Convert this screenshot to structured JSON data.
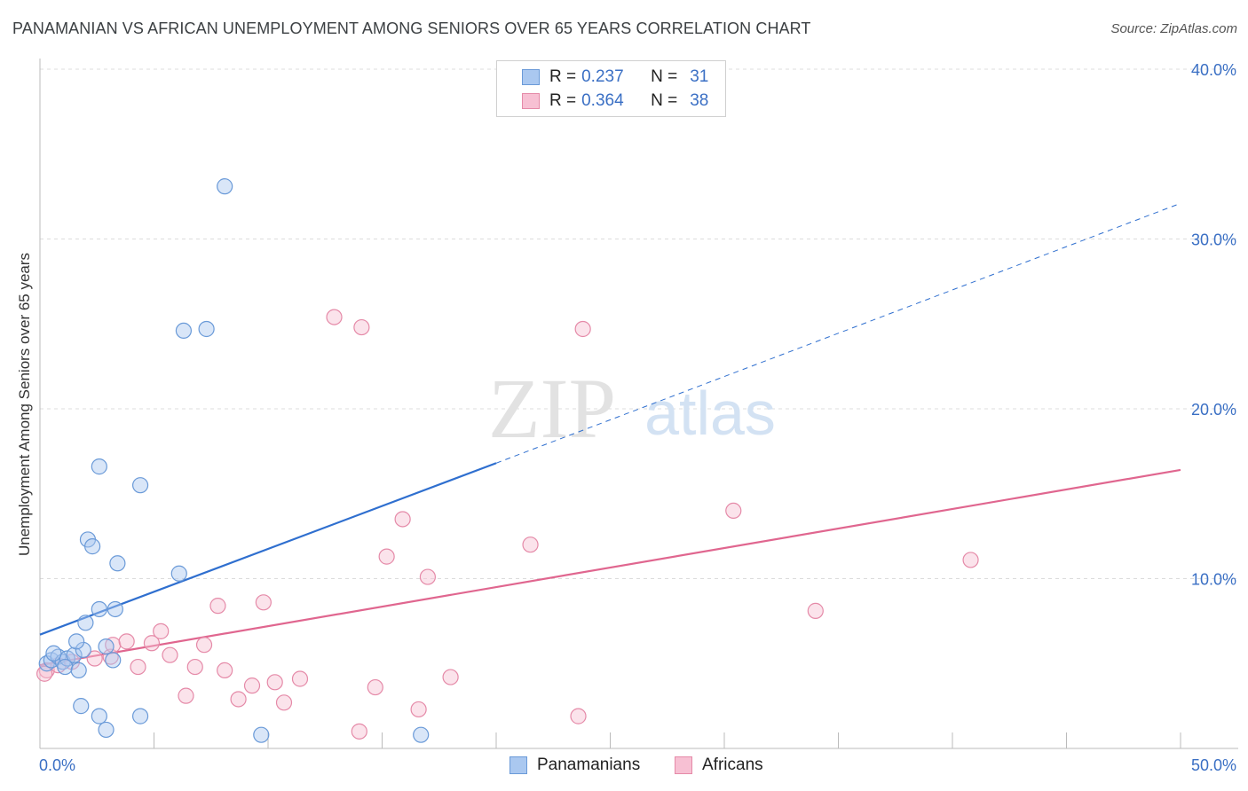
{
  "title": "PANAMANIAN VS AFRICAN UNEMPLOYMENT AMONG SENIORS OVER 65 YEARS CORRELATION CHART",
  "source": "Source: ZipAtlas.com",
  "watermark": {
    "zip": "ZIP",
    "atlas": "atlas"
  },
  "legend": {
    "rows": [
      {
        "r_label": "R =",
        "r_value": "0.237",
        "n_label": "N =",
        "n_value": "31",
        "color": "#aac8f0",
        "border": "#6a9ad8"
      },
      {
        "r_label": "R =",
        "r_value": "0.364",
        "n_label": "N =",
        "n_value": "38",
        "color": "#f7c0d3",
        "border": "#e58aa8"
      }
    ]
  },
  "bottom_legend": [
    {
      "label": "Panamanians",
      "color": "#aac8f0",
      "border": "#6a9ad8"
    },
    {
      "label": "Africans",
      "color": "#f7c0d3",
      "border": "#e58aa8"
    }
  ],
  "chart_data": {
    "type": "scatter",
    "title": "PANAMANIAN VS AFRICAN UNEMPLOYMENT AMONG SENIORS OVER 65 YEARS CORRELATION CHART",
    "xlabel": "",
    "ylabel": "Unemployment Among Seniors over 65 years",
    "xlim": [
      0,
      50
    ],
    "ylim": [
      0,
      40
    ],
    "x_tick_labels": [
      "0.0%",
      "50.0%"
    ],
    "y_ticks": [
      10,
      20,
      30,
      40
    ],
    "y_tick_labels": [
      "10.0%",
      "20.0%",
      "30.0%",
      "40.0%"
    ],
    "grid": true,
    "series": [
      {
        "name": "Panamanians",
        "color": "#6a9ad8",
        "fill": "rgba(170,200,240,0.45)",
        "line_color": "#2f6fcf",
        "trend": {
          "x0": 0,
          "y0": 6.7,
          "x_solid_end": 20,
          "y_solid_end": 16.8,
          "x1": 50,
          "y1": 32.1
        },
        "points": [
          [
            0.3,
            5.0
          ],
          [
            0.5,
            5.2
          ],
          [
            0.8,
            5.4
          ],
          [
            1.0,
            5.1
          ],
          [
            1.2,
            5.3
          ],
          [
            1.5,
            5.5
          ],
          [
            1.1,
            4.8
          ],
          [
            1.7,
            4.6
          ],
          [
            1.9,
            5.8
          ],
          [
            1.6,
            6.3
          ],
          [
            2.0,
            7.4
          ],
          [
            2.1,
            12.3
          ],
          [
            2.3,
            11.9
          ],
          [
            2.6,
            8.2
          ],
          [
            2.9,
            6.0
          ],
          [
            3.2,
            5.2
          ],
          [
            3.3,
            8.2
          ],
          [
            3.4,
            10.9
          ],
          [
            2.6,
            16.6
          ],
          [
            4.4,
            15.5
          ],
          [
            6.1,
            10.3
          ],
          [
            6.3,
            24.6
          ],
          [
            7.3,
            24.7
          ],
          [
            8.1,
            33.1
          ],
          [
            1.8,
            2.5
          ],
          [
            2.6,
            1.9
          ],
          [
            2.9,
            1.1
          ],
          [
            4.4,
            1.9
          ],
          [
            9.7,
            0.8
          ],
          [
            16.7,
            0.8
          ],
          [
            0.6,
            5.6
          ]
        ]
      },
      {
        "name": "Africans",
        "color": "#e58aa8",
        "fill": "rgba(247,192,211,0.45)",
        "line_color": "#e0668f",
        "trend": {
          "x0": 0,
          "y0": 4.9,
          "x1": 50,
          "y1": 16.4
        },
        "points": [
          [
            0.3,
            4.6
          ],
          [
            0.8,
            4.9
          ],
          [
            1.4,
            5.1
          ],
          [
            2.4,
            5.3
          ],
          [
            3.1,
            5.4
          ],
          [
            3.2,
            6.1
          ],
          [
            3.8,
            6.3
          ],
          [
            4.3,
            4.8
          ],
          [
            4.9,
            6.2
          ],
          [
            5.3,
            6.9
          ],
          [
            5.7,
            5.5
          ],
          [
            6.4,
            3.1
          ],
          [
            6.8,
            4.8
          ],
          [
            7.2,
            6.1
          ],
          [
            7.8,
            8.4
          ],
          [
            8.1,
            4.6
          ],
          [
            8.7,
            2.9
          ],
          [
            9.3,
            3.7
          ],
          [
            9.8,
            8.6
          ],
          [
            10.3,
            3.9
          ],
          [
            10.7,
            2.7
          ],
          [
            11.4,
            4.1
          ],
          [
            12.9,
            25.4
          ],
          [
            14.0,
            1.0
          ],
          [
            14.1,
            24.8
          ],
          [
            14.7,
            3.6
          ],
          [
            15.2,
            11.3
          ],
          [
            15.9,
            13.5
          ],
          [
            16.6,
            2.3
          ],
          [
            17.0,
            10.1
          ],
          [
            18.0,
            4.2
          ],
          [
            21.5,
            12.0
          ],
          [
            23.6,
            1.9
          ],
          [
            23.8,
            24.7
          ],
          [
            30.4,
            14.0
          ],
          [
            34.0,
            8.1
          ],
          [
            40.8,
            11.1
          ],
          [
            0.2,
            4.4
          ]
        ]
      }
    ]
  }
}
